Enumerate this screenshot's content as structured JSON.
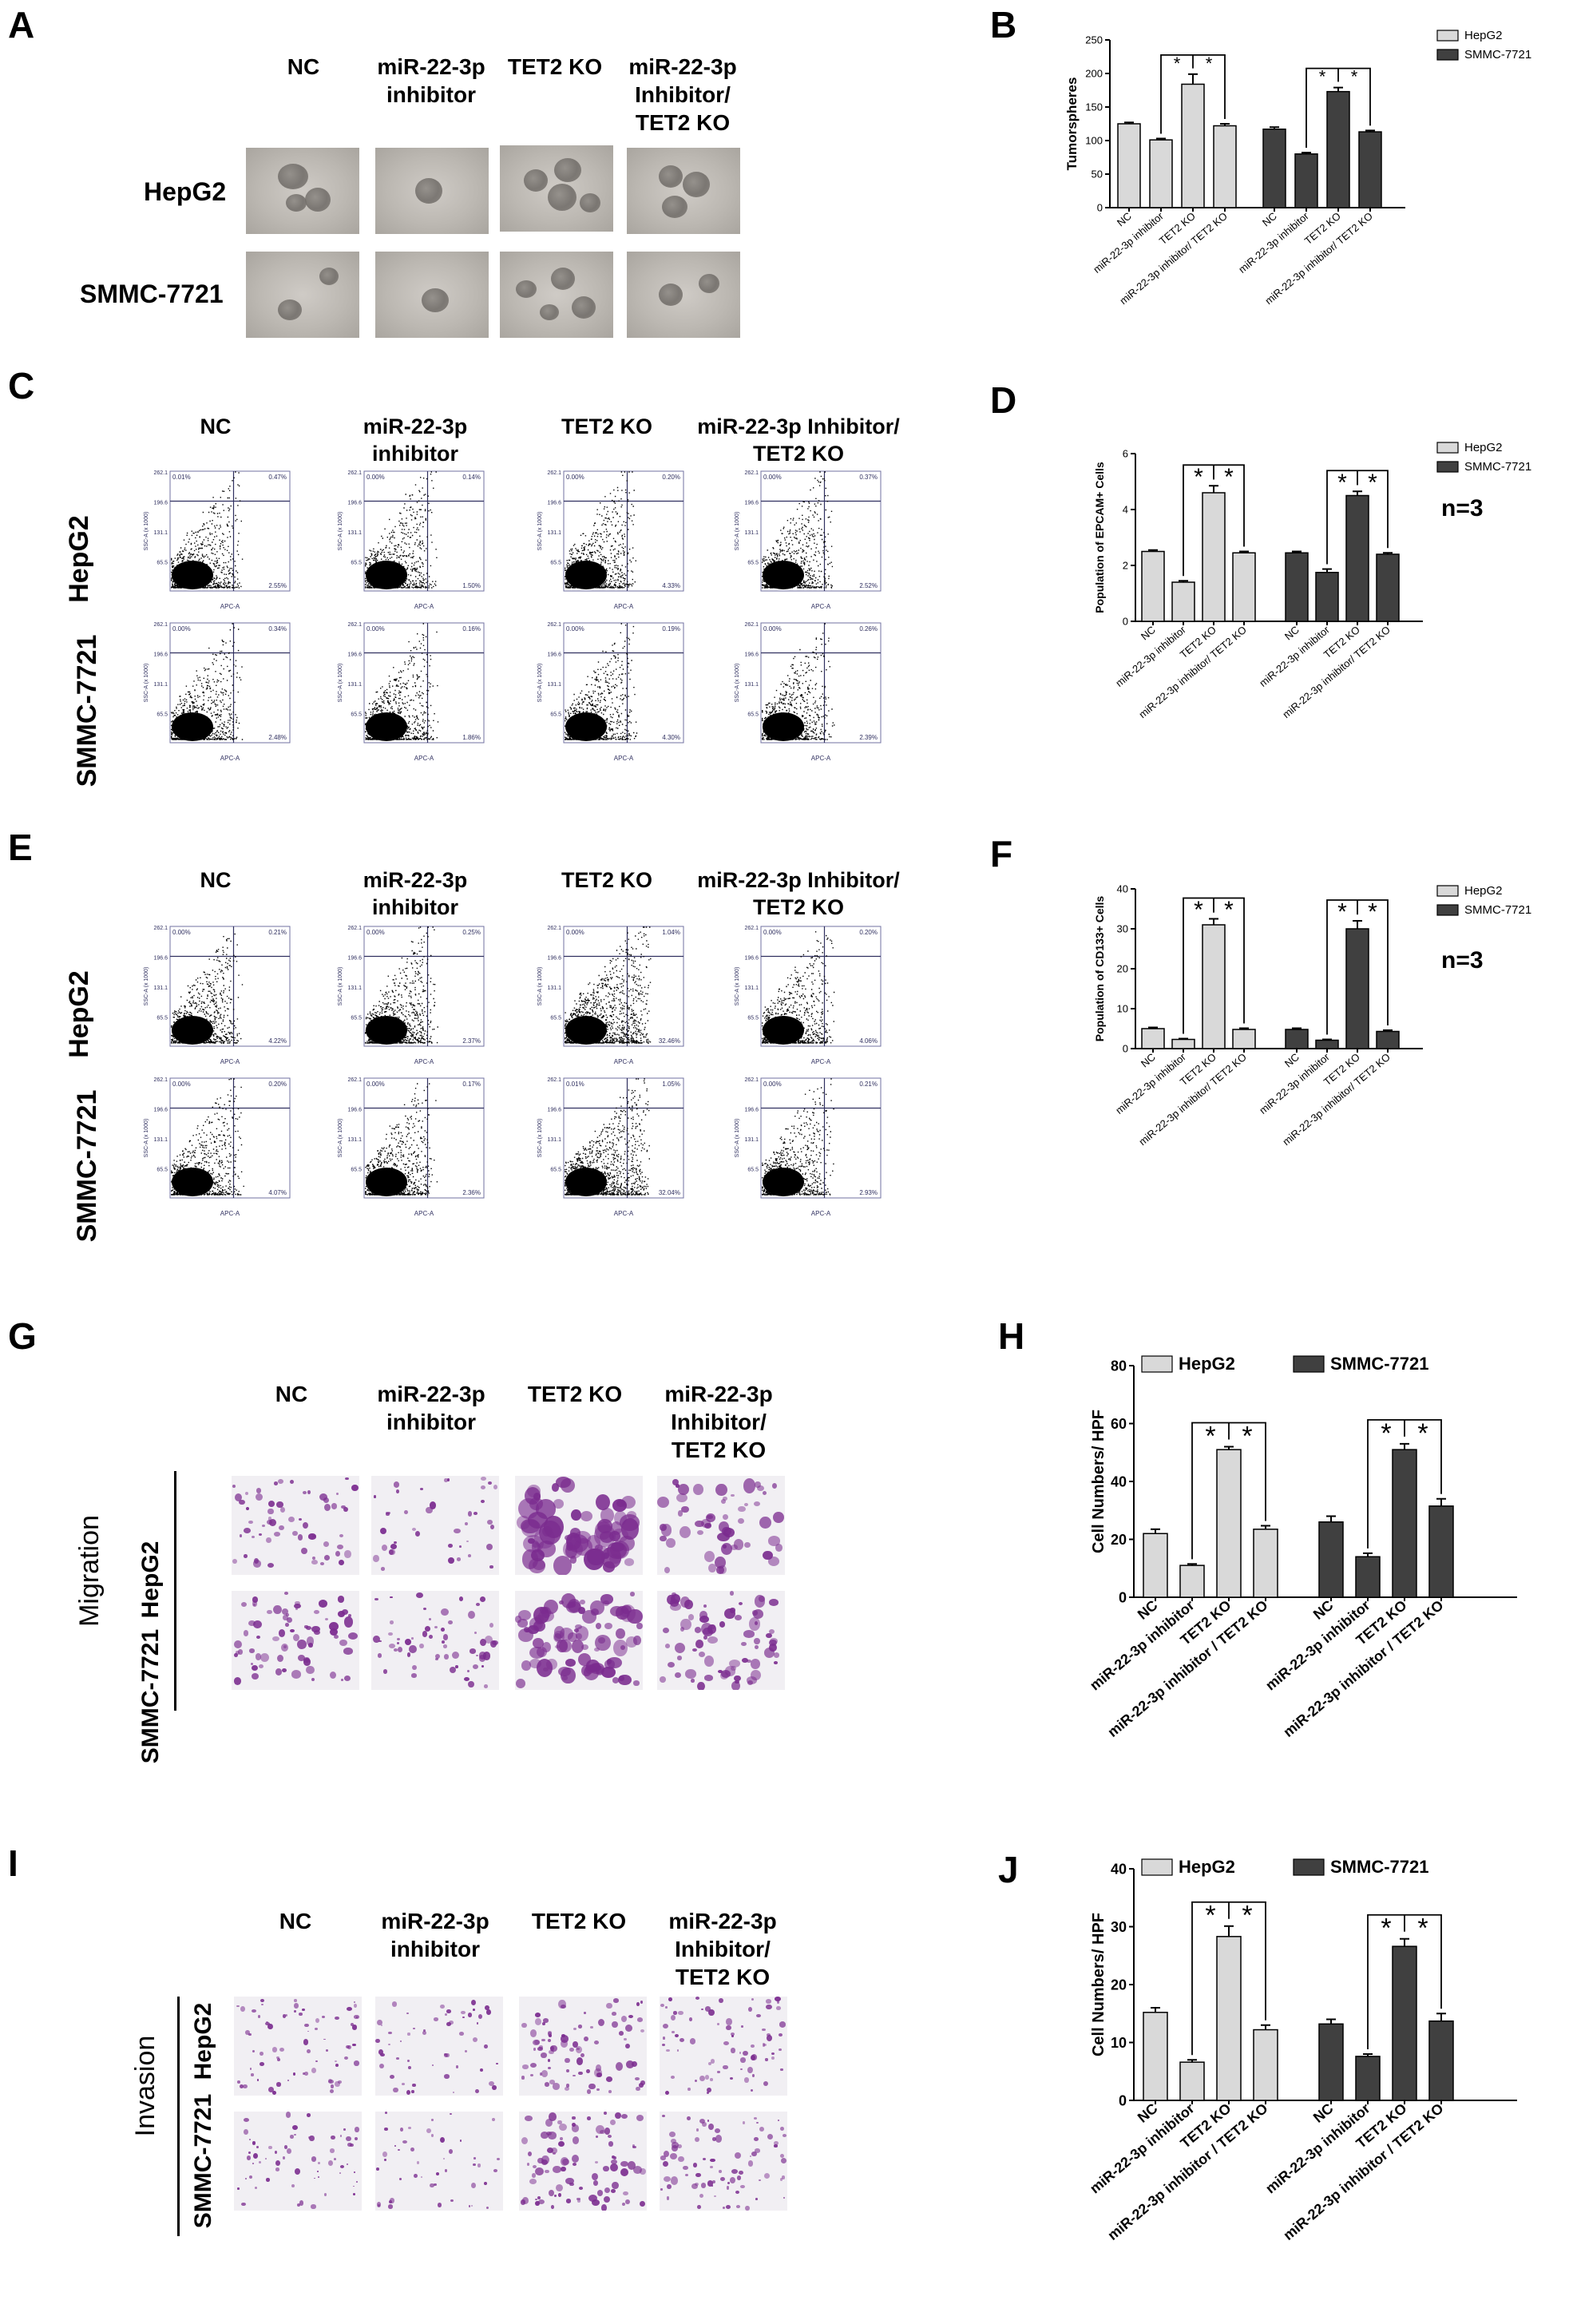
{
  "panel_letters": {
    "A": "A",
    "B": "B",
    "C": "C",
    "D": "D",
    "E": "E",
    "F": "F",
    "G": "G",
    "H": "H",
    "I": "I",
    "J": "J"
  },
  "panelA": {
    "col_headers": [
      [
        "NC"
      ],
      [
        "miR-22-3p",
        "inhibitor"
      ],
      [
        "TET2 KO"
      ],
      [
        "miR-22-3p",
        "Inhibitor/",
        "TET2 KO"
      ]
    ],
    "row_headers": [
      "HepG2",
      "SMMC-7721"
    ]
  },
  "panelC": {
    "col_headers": [
      [
        "NC"
      ],
      [
        "miR-22-3p",
        "inhibitor"
      ],
      [
        "TET2 KO"
      ],
      [
        "miR-22-3p Inhibitor/",
        "TET2 KO"
      ]
    ],
    "row_headers": [
      "HepG2",
      "SMMC-7721"
    ],
    "plots": [
      {
        "ul": "0.01%",
        "ur": "0.47%",
        "lr": "2.55%"
      },
      {
        "ul": "0.00%",
        "ur": "0.14%",
        "lr": "1.50%"
      },
      {
        "ul": "0.00%",
        "ur": "0.20%",
        "lr": "4.33%"
      },
      {
        "ul": "0.00%",
        "ur": "0.37%",
        "lr": "2.52%"
      },
      {
        "ul": "0.00%",
        "ur": "0.34%",
        "lr": "2.48%"
      },
      {
        "ul": "0.00%",
        "ur": "0.16%",
        "lr": "1.86%"
      },
      {
        "ul": "0.00%",
        "ur": "0.19%",
        "lr": "4.30%"
      },
      {
        "ul": "0.00%",
        "ur": "0.26%",
        "lr": "2.39%"
      }
    ],
    "y_ticks": [
      "262.1",
      "196.6",
      "131.1",
      "65.5"
    ],
    "y_axis": "SSC-A (x 1000)",
    "x_axis": "APC-A"
  },
  "panelE": {
    "col_headers": [
      [
        "NC"
      ],
      [
        "miR-22-3p",
        "inhibitor"
      ],
      [
        "TET2 KO"
      ],
      [
        "miR-22-3p Inhibitor/",
        "TET2 KO"
      ]
    ],
    "row_headers": [
      "HepG2",
      "SMMC-7721"
    ],
    "plots": [
      {
        "ul": "0.00%",
        "ur": "0.21%",
        "lr": "4.22%"
      },
      {
        "ul": "0.00%",
        "ur": "0.25%",
        "lr": "2.37%"
      },
      {
        "ul": "0.00%",
        "ur": "1.04%",
        "lr": "32.46%"
      },
      {
        "ul": "0.00%",
        "ur": "0.20%",
        "lr": "4.06%"
      },
      {
        "ul": "0.00%",
        "ur": "0.20%",
        "lr": "4.07%"
      },
      {
        "ul": "0.00%",
        "ur": "0.17%",
        "lr": "2.36%"
      },
      {
        "ul": "0.01%",
        "ur": "1.05%",
        "lr": "32.04%"
      },
      {
        "ul": "0.00%",
        "ur": "0.21%",
        "lr": "2.93%"
      }
    ],
    "y_ticks": [
      "262.1",
      "196.6",
      "131.1",
      "65.5"
    ],
    "y_axis": "SSC-A (x 1000)",
    "x_axis": "APC-A"
  },
  "panelG": {
    "col_headers": [
      [
        "NC"
      ],
      [
        "miR-22-3p",
        "inhibitor"
      ],
      [
        "TET2 KO"
      ],
      [
        "miR-22-3p",
        "Inhibitor/",
        "TET2 KO"
      ]
    ],
    "row_headers": [
      "HepG2",
      "SMMC-7721"
    ],
    "side_label": "Migration"
  },
  "panelI": {
    "col_headers": [
      [
        "NC"
      ],
      [
        "miR-22-3p",
        "inhibitor"
      ],
      [
        "TET2 KO"
      ],
      [
        "miR-22-3p",
        "Inhibitor/",
        "TET2 KO"
      ]
    ],
    "row_headers": [
      "HepG2",
      "SMMC-7721"
    ],
    "side_label": "Invasion"
  },
  "n_label": "n=3",
  "colors": {
    "hepg2": "#d9d9d9",
    "smmc": "#404040",
    "stain": "#7b2c8f"
  },
  "chart_data": [
    {
      "id": "B",
      "type": "bar",
      "title": "",
      "categories": [
        "NC",
        "miR-22-3p inhibitor",
        "TET2 KO",
        "miR-22-3p inhibitor/ TET2 KO"
      ],
      "series": [
        {
          "name": "HepG2",
          "values": [
            125,
            101,
            184,
            122
          ],
          "errors": [
            2,
            2,
            15,
            3
          ]
        },
        {
          "name": "SMMC-7721",
          "values": [
            117,
            80,
            173,
            113
          ],
          "errors": [
            3,
            2,
            6,
            2
          ]
        }
      ],
      "ylabel": "Tumorspheres",
      "ylim": [
        0,
        250
      ],
      "yticks": [
        0,
        50,
        100,
        150,
        200,
        250
      ],
      "legend": "top-right",
      "sig": "*"
    },
    {
      "id": "D",
      "type": "bar",
      "title": "",
      "categories": [
        "NC",
        "miR-22-3p inhibitor",
        "TET2 KO",
        "miR-22-3p inhibitor/ TET2 KO"
      ],
      "series": [
        {
          "name": "HepG2",
          "values": [
            2.5,
            1.4,
            4.6,
            2.45
          ],
          "errors": [
            0.05,
            0.05,
            0.25,
            0.05
          ]
        },
        {
          "name": "SMMC-7721",
          "values": [
            2.45,
            1.75,
            4.5,
            2.4
          ],
          "errors": [
            0.05,
            0.12,
            0.15,
            0.05
          ]
        }
      ],
      "ylabel": "Population of EPCAM+ Cells",
      "ylim": [
        0,
        6
      ],
      "yticks": [
        0,
        2,
        4,
        6
      ],
      "legend": "top-right",
      "sig": "*"
    },
    {
      "id": "F",
      "type": "bar",
      "title": "",
      "categories": [
        "NC",
        "miR-22-3p inhibitor",
        "TET2 KO",
        "miR-22-3p inhibitor/ TET2 KO"
      ],
      "series": [
        {
          "name": "HepG2",
          "values": [
            5,
            2.3,
            31,
            4.8
          ],
          "errors": [
            0.3,
            0.2,
            1.5,
            0.3
          ]
        },
        {
          "name": "SMMC-7721",
          "values": [
            4.8,
            2.1,
            30,
            4.3
          ],
          "errors": [
            0.3,
            0.2,
            2,
            0.3
          ]
        }
      ],
      "ylabel": "Population of CD133+ Cells",
      "ylim": [
        0,
        40
      ],
      "yticks": [
        0,
        10,
        20,
        30,
        40
      ],
      "legend": "top-right",
      "sig": "*"
    },
    {
      "id": "H",
      "type": "bar",
      "title": "",
      "categories": [
        "NC",
        "miR-22-3p inhibitor",
        "TET2 KO",
        "miR-22-3p inhibitor / TET2 KO"
      ],
      "series": [
        {
          "name": "HepG2",
          "values": [
            22,
            11,
            51,
            23.5
          ],
          "errors": [
            1.5,
            0.5,
            1,
            1.2
          ]
        },
        {
          "name": "SMMC-7721",
          "values": [
            26,
            14,
            51,
            31.5
          ],
          "errors": [
            2,
            1.2,
            2,
            2.5
          ]
        }
      ],
      "ylabel": "Cell Numbers/ HPF",
      "ylim": [
        0,
        80
      ],
      "yticks": [
        0,
        20,
        40,
        60,
        80
      ],
      "legend": "top",
      "sig": "*"
    },
    {
      "id": "J",
      "type": "bar",
      "title": "",
      "categories": [
        "NC",
        "miR-22-3p inhibitor",
        "TET2 KO",
        "miR-22-3p inhibitor / TET2 KO"
      ],
      "series": [
        {
          "name": "HepG2",
          "values": [
            15.2,
            6.6,
            28.3,
            12.2
          ],
          "errors": [
            0.8,
            0.4,
            1.8,
            0.8
          ]
        },
        {
          "name": "SMMC-7721",
          "values": [
            13.2,
            7.6,
            26.6,
            13.7
          ],
          "errors": [
            0.8,
            0.4,
            1.3,
            1.3
          ]
        }
      ],
      "ylabel": "Cell Numbers/ HPF",
      "ylim": [
        0,
        40
      ],
      "yticks": [
        0,
        10,
        20,
        30,
        40
      ],
      "legend": "top",
      "sig": "*"
    }
  ]
}
